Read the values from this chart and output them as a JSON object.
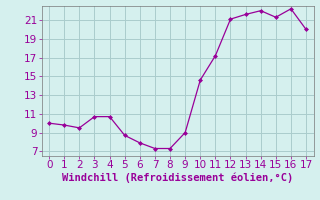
{
  "x_data": [
    0,
    1,
    2,
    3,
    4,
    5,
    6,
    7,
    8,
    9,
    10,
    11,
    12,
    13,
    14,
    15,
    16,
    17
  ],
  "y_data": [
    10.0,
    9.8,
    9.5,
    10.7,
    10.7,
    8.7,
    7.9,
    7.3,
    7.3,
    9.0,
    14.6,
    17.2,
    21.1,
    21.6,
    22.0,
    21.3,
    22.2,
    20.0
  ],
  "line_color": "#990099",
  "marker_color": "#990099",
  "bg_color": "#d5f0ee",
  "grid_color": "#aacccc",
  "xlabel": "Windchill (Refroidissement éolien,°C)",
  "xlabel_color": "#990099",
  "tick_color": "#990099",
  "spine_color": "#777777",
  "ylim": [
    6.5,
    22.5
  ],
  "xlim": [
    -0.5,
    17.5
  ],
  "yticks": [
    7,
    9,
    11,
    13,
    15,
    17,
    19,
    21
  ],
  "xticks": [
    0,
    1,
    2,
    3,
    4,
    5,
    6,
    7,
    8,
    9,
    10,
    11,
    12,
    13,
    14,
    15,
    16,
    17
  ],
  "tick_fontsize": 7.5,
  "xlabel_fontsize": 7.5
}
